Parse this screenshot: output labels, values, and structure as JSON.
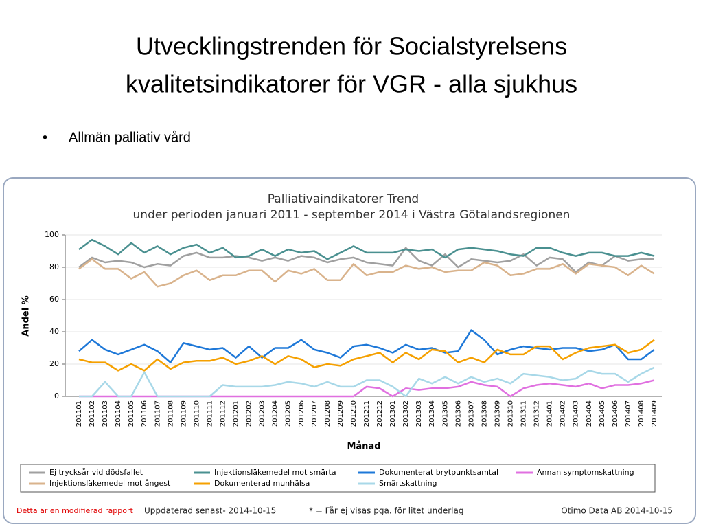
{
  "slide": {
    "title_lines": [
      "Utvecklingstrenden för Socialstyrelsens",
      "kvalitetsindikatorer för VGR - alla sjukhus"
    ],
    "bullet": "Allmän palliativ vård"
  },
  "chart_data": {
    "type": "line",
    "title": "Palliativaindikatorer Trend",
    "subtitle": "under perioden januari 2011 - september 2014 i   Västra Götalandsregionen",
    "x_label": "Månad",
    "y_label": "Andel %",
    "categories": [
      "201101",
      "201102",
      "201103",
      "201104",
      "201105",
      "201106",
      "201107",
      "201108",
      "201109",
      "201110",
      "201111",
      "201112",
      "201201",
      "201202",
      "201203",
      "201204",
      "201205",
      "201206",
      "201207",
      "201208",
      "201209",
      "201210",
      "201211",
      "201212",
      "201301",
      "201302",
      "201303",
      "201304",
      "201305",
      "201306",
      "201307",
      "201308",
      "201309",
      "201310",
      "201311",
      "201312",
      "201401",
      "201402",
      "201403",
      "201404",
      "201405",
      "201406",
      "201407",
      "201408",
      "201409"
    ],
    "ylim": [
      0,
      100
    ],
    "yticks": [
      0,
      20,
      40,
      60,
      80,
      100
    ],
    "grid": true,
    "series": [
      {
        "name": "Ej trycksår vid dödsfallet",
        "color": "#a0a0a0",
        "values": [
          80,
          86,
          83,
          84,
          83,
          80,
          82,
          81,
          87,
          89,
          86,
          86,
          87,
          86,
          84,
          86,
          84,
          87,
          86,
          83,
          85,
          86,
          83,
          82,
          81,
          92,
          84,
          81,
          88,
          80,
          85,
          84,
          83,
          84,
          88,
          81,
          86,
          85,
          77,
          83,
          81,
          87,
          84,
          85,
          85
        ]
      },
      {
        "name": "Injektionsläkemedel mot smärta",
        "color": "#4a9090",
        "values": [
          91,
          97,
          93,
          88,
          95,
          89,
          93,
          88,
          92,
          94,
          89,
          92,
          86,
          87,
          91,
          87,
          91,
          89,
          90,
          85,
          89,
          93,
          89,
          89,
          89,
          91,
          90,
          91,
          86,
          91,
          92,
          91,
          90,
          88,
          87,
          92,
          92,
          89,
          87,
          89,
          89,
          87,
          87,
          89,
          87
        ]
      },
      {
        "name": "Dokumenterat brytpunktsamtal",
        "color": "#1e78d8",
        "values": [
          28,
          35,
          29,
          26,
          29,
          32,
          28,
          21,
          33,
          31,
          29,
          30,
          24,
          31,
          24,
          30,
          30,
          35,
          29,
          27,
          24,
          31,
          32,
          30,
          27,
          32,
          29,
          30,
          27,
          28,
          41,
          35,
          26,
          29,
          31,
          30,
          29,
          30,
          30,
          28,
          29,
          32,
          23,
          23,
          29
        ]
      },
      {
        "name": "Annan symptomskattning",
        "color": "#e070e0",
        "values": [
          0,
          0,
          0,
          0,
          0,
          0,
          0,
          0,
          0,
          0,
          0,
          0,
          0,
          0,
          0,
          0,
          0,
          0,
          0,
          0,
          0,
          0,
          6,
          5,
          0,
          5,
          4,
          5,
          5,
          6,
          9,
          7,
          6,
          0,
          5,
          7,
          8,
          7,
          6,
          8,
          5,
          7,
          7,
          8,
          10
        ]
      },
      {
        "name": "Injektionsläkemedel mot ångest",
        "color": "#d9b38c",
        "values": [
          79,
          85,
          79,
          79,
          73,
          77,
          68,
          70,
          75,
          78,
          72,
          75,
          75,
          78,
          78,
          71,
          78,
          76,
          79,
          72,
          72,
          82,
          75,
          77,
          77,
          81,
          79,
          80,
          77,
          78,
          78,
          83,
          81,
          75,
          76,
          79,
          79,
          82,
          76,
          82,
          81,
          80,
          75,
          81,
          76
        ]
      },
      {
        "name": "Dokumenterad munhälsa",
        "color": "#f5a000",
        "values": [
          23,
          21,
          21,
          16,
          20,
          16,
          23,
          17,
          21,
          22,
          22,
          24,
          20,
          22,
          25,
          20,
          25,
          23,
          18,
          20,
          19,
          23,
          25,
          27,
          21,
          27,
          23,
          29,
          28,
          21,
          24,
          21,
          29,
          26,
          26,
          31,
          31,
          23,
          27,
          30,
          31,
          32,
          27,
          29,
          35
        ]
      },
      {
        "name": "Smärtskattning",
        "color": "#a8d8e8",
        "values": [
          0,
          0,
          9,
          0,
          0,
          15,
          0,
          0,
          0,
          0,
          0,
          7,
          6,
          6,
          6,
          7,
          9,
          8,
          6,
          9,
          6,
          6,
          10,
          10,
          6,
          0,
          11,
          8,
          12,
          8,
          12,
          9,
          11,
          8,
          14,
          13,
          12,
          10,
          11,
          16,
          14,
          14,
          9,
          14,
          18
        ]
      }
    ]
  },
  "footer": {
    "note": "Detta är en modifierad rapport",
    "updated": "Uppdaterad senast- 2014-10-15",
    "legend_note": "* = Får ej visas pga. för litet underlag",
    "source": "Otimo Data AB 2014-10-15"
  }
}
